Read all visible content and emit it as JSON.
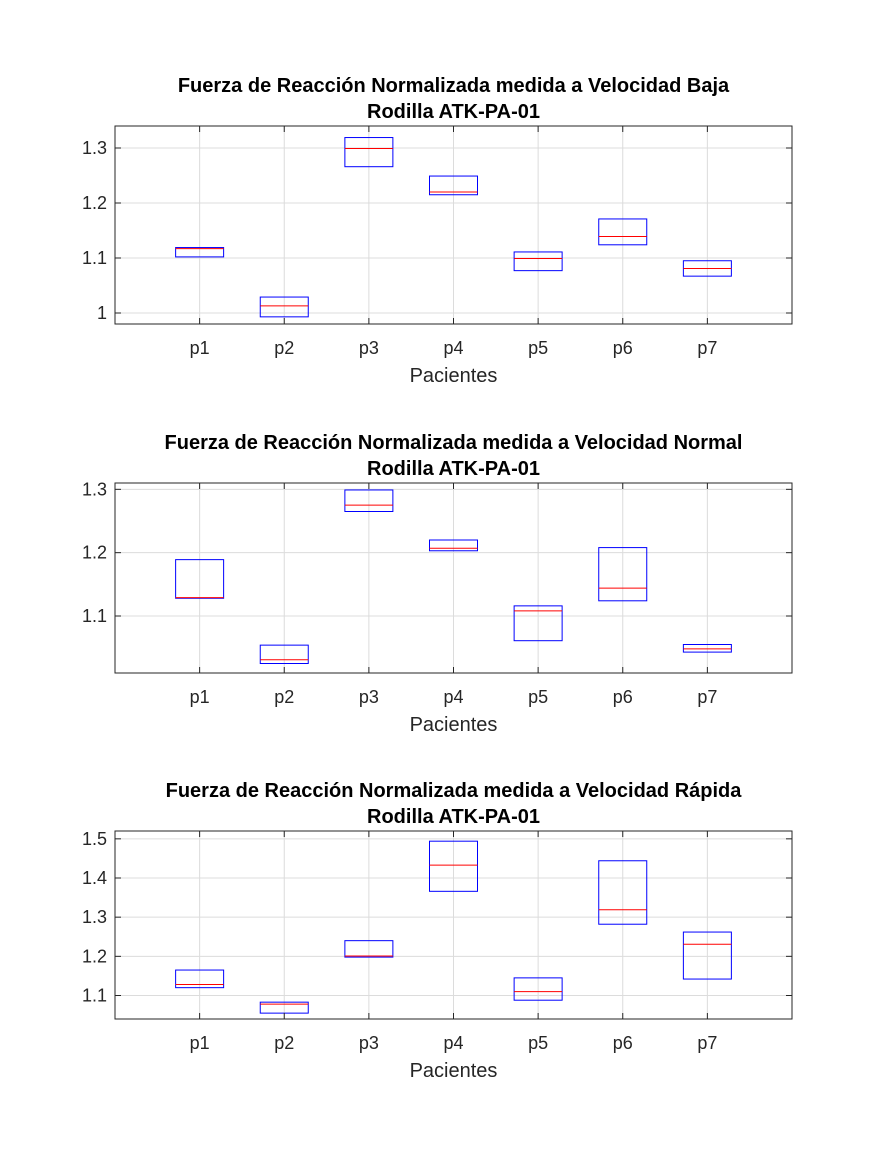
{
  "colors": {
    "box": "#0000ff",
    "median": "#ff0000",
    "axis": "#262626",
    "grid": "#dcdcdc"
  },
  "chart_data": [
    {
      "type": "box",
      "title": "Fuerza de Reacción Normalizada medida a Velocidad Baja",
      "subtitle": "Rodilla ATK-PA-01",
      "xlabel": "Pacientes",
      "ylabel": "",
      "categories": [
        "p1",
        "p2",
        "p3",
        "p4",
        "p5",
        "p6",
        "p7"
      ],
      "ylim": [
        0.98,
        1.34
      ],
      "yticks": [
        1,
        1.1,
        1.2,
        1.3
      ],
      "ytick_labels": [
        "1",
        "1.1",
        "1.2",
        "1.3"
      ],
      "grid": true,
      "boxes": [
        {
          "q1": 1.102,
          "median": 1.117,
          "q3": 1.119
        },
        {
          "q1": 0.993,
          "median": 1.013,
          "q3": 1.029
        },
        {
          "q1": 1.266,
          "median": 1.299,
          "q3": 1.319
        },
        {
          "q1": 1.215,
          "median": 1.22,
          "q3": 1.249
        },
        {
          "q1": 1.077,
          "median": 1.099,
          "q3": 1.111
        },
        {
          "q1": 1.124,
          "median": 1.139,
          "q3": 1.171
        },
        {
          "q1": 1.067,
          "median": 1.081,
          "q3": 1.095
        }
      ]
    },
    {
      "type": "box",
      "title": "Fuerza de Reacción Normalizada medida a Velocidad Normal",
      "subtitle": "Rodilla ATK-PA-01",
      "xlabel": "Pacientes",
      "ylabel": "",
      "categories": [
        "p1",
        "p2",
        "p3",
        "p4",
        "p5",
        "p6",
        "p7"
      ],
      "ylim": [
        1.01,
        1.31
      ],
      "yticks": [
        1.1,
        1.2,
        1.3
      ],
      "ytick_labels": [
        "1.1",
        "1.2",
        "1.3"
      ],
      "grid": true,
      "boxes": [
        {
          "q1": 1.128,
          "median": 1.129,
          "q3": 1.189
        },
        {
          "q1": 1.025,
          "median": 1.031,
          "q3": 1.054
        },
        {
          "q1": 1.265,
          "median": 1.275,
          "q3": 1.299
        },
        {
          "q1": 1.203,
          "median": 1.207,
          "q3": 1.22
        },
        {
          "q1": 1.061,
          "median": 1.108,
          "q3": 1.116
        },
        {
          "q1": 1.124,
          "median": 1.144,
          "q3": 1.208
        },
        {
          "q1": 1.043,
          "median": 1.048,
          "q3": 1.055
        }
      ]
    },
    {
      "type": "box",
      "title": "Fuerza de Reacción Normalizada medida a Velocidad Rápida",
      "subtitle": "Rodilla ATK-PA-01",
      "xlabel": "Pacientes",
      "ylabel": "",
      "categories": [
        "p1",
        "p2",
        "p3",
        "p4",
        "p5",
        "p6",
        "p7"
      ],
      "ylim": [
        1.04,
        1.52
      ],
      "yticks": [
        1.1,
        1.2,
        1.3,
        1.4,
        1.5
      ],
      "ytick_labels": [
        "1.1",
        "1.2",
        "1.3",
        "1.4",
        "1.5"
      ],
      "grid": true,
      "boxes": [
        {
          "q1": 1.12,
          "median": 1.128,
          "q3": 1.165
        },
        {
          "q1": 1.055,
          "median": 1.078,
          "q3": 1.083
        },
        {
          "q1": 1.198,
          "median": 1.201,
          "q3": 1.24
        },
        {
          "q1": 1.366,
          "median": 1.433,
          "q3": 1.494
        },
        {
          "q1": 1.088,
          "median": 1.11,
          "q3": 1.145
        },
        {
          "q1": 1.282,
          "median": 1.319,
          "q3": 1.444
        },
        {
          "q1": 1.142,
          "median": 1.231,
          "q3": 1.262
        }
      ]
    }
  ]
}
